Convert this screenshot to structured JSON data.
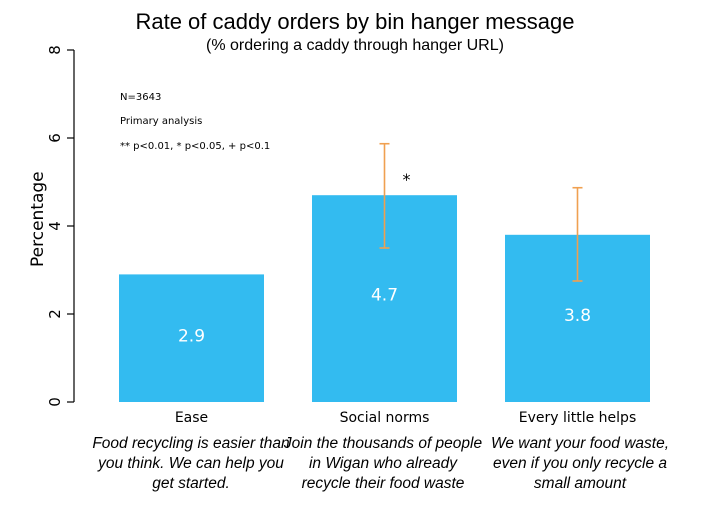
{
  "chart_data": {
    "type": "bar",
    "title": "Rate of caddy orders by bin hanger message",
    "subtitle": "(% ordering a caddy through  hanger URL)",
    "ylabel": "Percentage",
    "xlabel": "",
    "ylim": [
      0,
      8
    ],
    "yticks": [
      0,
      2,
      4,
      6,
      8
    ],
    "categories": [
      "Ease",
      "Social norms",
      "Every little helps"
    ],
    "values": [
      2.9,
      4.7,
      3.8
    ],
    "value_labels": [
      "2.9",
      "4.7",
      "3.8"
    ],
    "error_bars": [
      null,
      {
        "low": 3.5,
        "high": 5.87
      },
      {
        "low": 2.75,
        "high": 4.87
      }
    ],
    "significance": [
      "",
      "*",
      ""
    ],
    "descriptions": [
      "Food recycling is easier than you think. We can help you get started.",
      "Join the thousands of people in Wigan who already recycle their food waste",
      "We want  your food waste, even if you only recycle a small amount"
    ],
    "annotations": [
      "N=3643",
      "Primary analysis",
      "** p<0.01, * p<0.05, + p<0.1"
    ],
    "bar_color": "#33bbf0",
    "error_color": "#f0a050",
    "grid": false
  }
}
